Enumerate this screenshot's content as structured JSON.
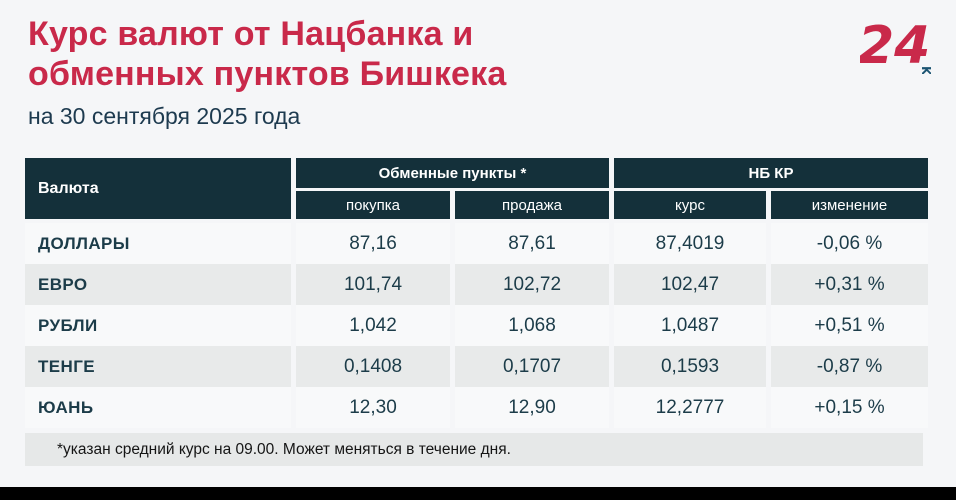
{
  "header": {
    "title_line1": "Курс валют от Нацбанка и",
    "title_line2": "обменных пунктов Бишкека",
    "subtitle": "на 30 сентября 2025 года"
  },
  "logo": {
    "number": "24",
    "country_code": "KG"
  },
  "colors": {
    "accent_red": "#C9294A",
    "header_bg": "#14303A",
    "row_alt_bg": "#E8EAEA",
    "text_dark": "#1C3C49",
    "footnote_bg": "#E6E8E8",
    "page_bg": "#F5F6F8"
  },
  "chart_data": {
    "type": "table",
    "title": "Курс валют от Нацбанка и обменных пунктов Бишкека",
    "subtitle": "на 30 сентября 2025 года",
    "column_groups": [
      "Обменные пункты *",
      "НБ КР"
    ],
    "columns": [
      "Валюта",
      "покупка",
      "продажа",
      "курс",
      "изменение"
    ],
    "header": {
      "currency": "Валюта",
      "group_exchange": "Обменные пункты *",
      "group_nbkr": "НБ КР",
      "buy": "покупка",
      "sell": "продажа",
      "rate": "курс",
      "change": "изменение"
    },
    "rows": [
      {
        "currency": "ДОЛЛАРЫ",
        "buy": "87,16",
        "sell": "87,61",
        "rate": "87,4019",
        "change": "-0,06 %"
      },
      {
        "currency": "ЕВРО",
        "buy": "101,74",
        "sell": "102,72",
        "rate": "102,47",
        "change": "+0,31 %"
      },
      {
        "currency": "РУБЛИ",
        "buy": "1,042",
        "sell": "1,068",
        "rate": "1,0487",
        "change": "+0,51 %"
      },
      {
        "currency": "ТЕНГЕ",
        "buy": "0,1408",
        "sell": "0,1707",
        "rate": "0,1593",
        "change": "-0,87 %"
      },
      {
        "currency": "ЮАНЬ",
        "buy": "12,30",
        "sell": "12,90",
        "rate": "12,2777",
        "change": "+0,15 %"
      }
    ],
    "footnote": "*указан средний курс на 09.00. Может меняться в течение дня."
  }
}
